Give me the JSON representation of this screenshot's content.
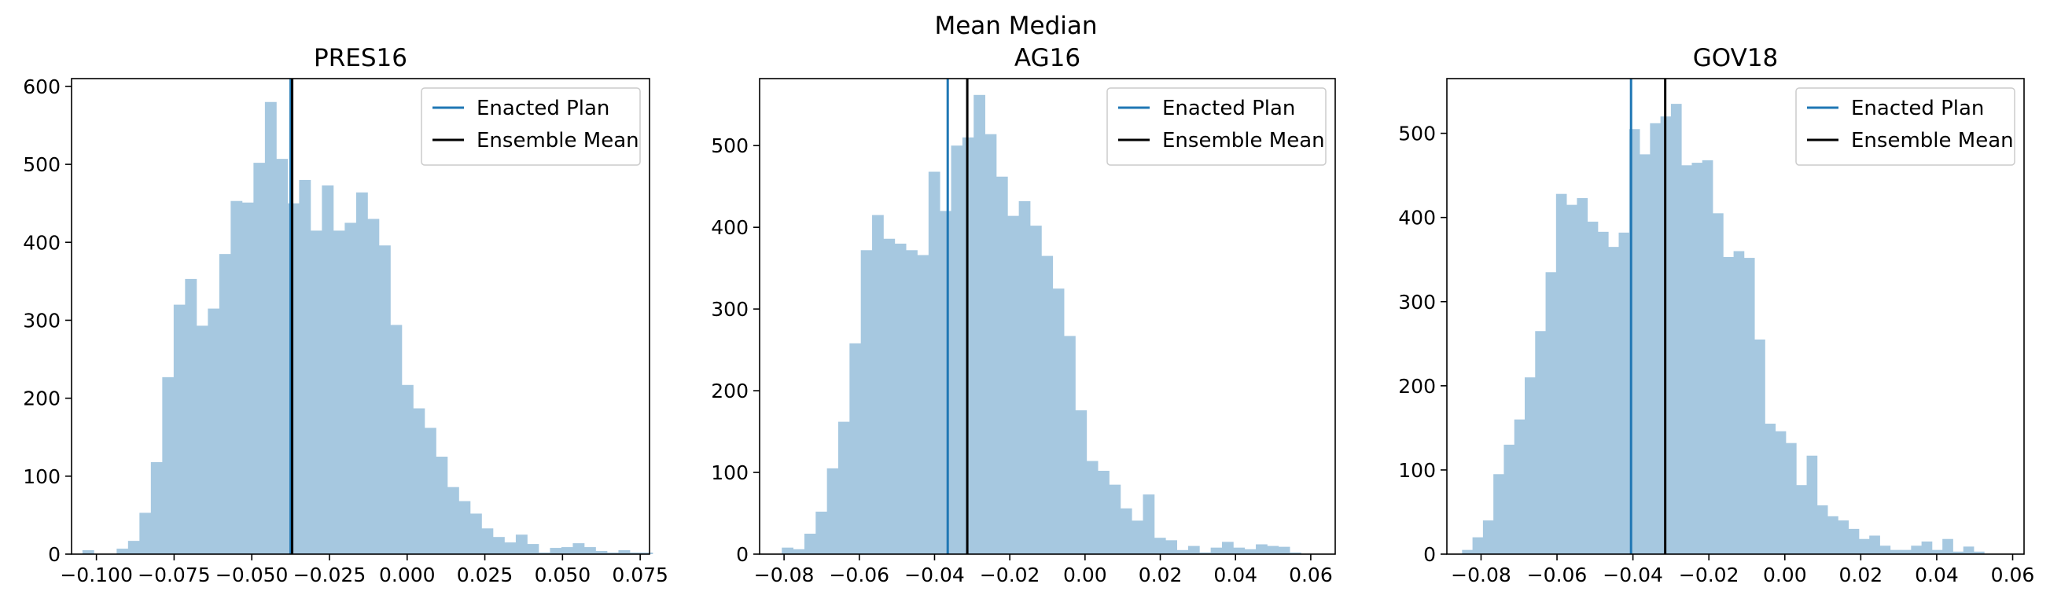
{
  "chart_data": {
    "suptitle": "Mean Median",
    "type": "histogram",
    "legend_position": "upper right",
    "legend": [
      {
        "label": "Enacted Plan",
        "color": "#1f77b4"
      },
      {
        "label": "Ensemble Mean",
        "color": "#000000"
      }
    ],
    "bar_color": "#a6c8e0",
    "panels": [
      {
        "title": "PRES16",
        "xlim": [
          -0.108,
          0.078
        ],
        "ylim": [
          0,
          610
        ],
        "xticks": [
          -0.1,
          -0.075,
          -0.05,
          -0.025,
          0.0,
          0.025,
          0.05,
          0.075
        ],
        "xtick_labels": [
          "−0.100",
          "−0.075",
          "−0.050",
          "−0.025",
          "0.000",
          "0.025",
          "0.050",
          "0.075"
        ],
        "yticks": [
          0,
          100,
          200,
          300,
          400,
          500,
          600
        ],
        "enacted_plan": -0.0375,
        "ensemble_mean": -0.037,
        "bins": {
          "start": -0.1045,
          "width": 0.00367,
          "counts": [
            5,
            0,
            0,
            7,
            17,
            53,
            118,
            227,
            320,
            353,
            293,
            315,
            385,
            453,
            451,
            502,
            580,
            507,
            450,
            480,
            415,
            473,
            415,
            425,
            464,
            430,
            396,
            294,
            217,
            187,
            162,
            125,
            86,
            68,
            52,
            33,
            22,
            15,
            25,
            13,
            2,
            8,
            9,
            14,
            9,
            4,
            2,
            5,
            2,
            2
          ]
        }
      },
      {
        "title": "AG16",
        "xlim": [
          -0.0865,
          0.0665
        ],
        "ylim": [
          0,
          582
        ],
        "xticks": [
          -0.08,
          -0.06,
          -0.04,
          -0.02,
          0.0,
          0.02,
          0.04,
          0.06
        ],
        "xtick_labels": [
          "−0.08",
          "−0.06",
          "−0.04",
          "−0.02",
          "0.00",
          "0.02",
          "0.04",
          "0.06"
        ],
        "yticks": [
          0,
          100,
          200,
          300,
          400,
          500
        ],
        "enacted_plan": -0.0365,
        "ensemble_mean": -0.0313,
        "bins": {
          "start": -0.0806,
          "width": 0.003,
          "counts": [
            8,
            6,
            25,
            52,
            105,
            162,
            258,
            372,
            415,
            386,
            380,
            372,
            366,
            468,
            420,
            500,
            510,
            562,
            514,
            462,
            414,
            432,
            402,
            365,
            325,
            267,
            176,
            114,
            102,
            85,
            56,
            41,
            73,
            20,
            17,
            5,
            10,
            2,
            8,
            15,
            8,
            6,
            12,
            10,
            9,
            2
          ]
        }
      },
      {
        "title": "GOV18",
        "xlim": [
          -0.089,
          0.063
        ],
        "ylim": [
          0,
          565
        ],
        "xticks": [
          -0.08,
          -0.06,
          -0.04,
          -0.02,
          0.0,
          0.02,
          0.04,
          0.06
        ],
        "xtick_labels": [
          "−0.08",
          "−0.06",
          "−0.04",
          "−0.02",
          "0.00",
          "0.02",
          "0.04",
          "0.06"
        ],
        "yticks": [
          0,
          100,
          200,
          300,
          400,
          500
        ],
        "enacted_plan": -0.0405,
        "ensemble_mean": -0.0315,
        "bins": {
          "start": -0.085,
          "width": 0.00275,
          "counts": [
            5,
            20,
            40,
            95,
            130,
            160,
            210,
            265,
            335,
            428,
            415,
            423,
            395,
            383,
            365,
            382,
            505,
            475,
            512,
            520,
            535,
            462,
            465,
            468,
            405,
            353,
            360,
            352,
            255,
            155,
            146,
            132,
            82,
            117,
            58,
            45,
            40,
            30,
            18,
            22,
            10,
            5,
            5,
            10,
            15,
            5,
            18,
            3,
            9,
            3
          ]
        }
      }
    ]
  }
}
